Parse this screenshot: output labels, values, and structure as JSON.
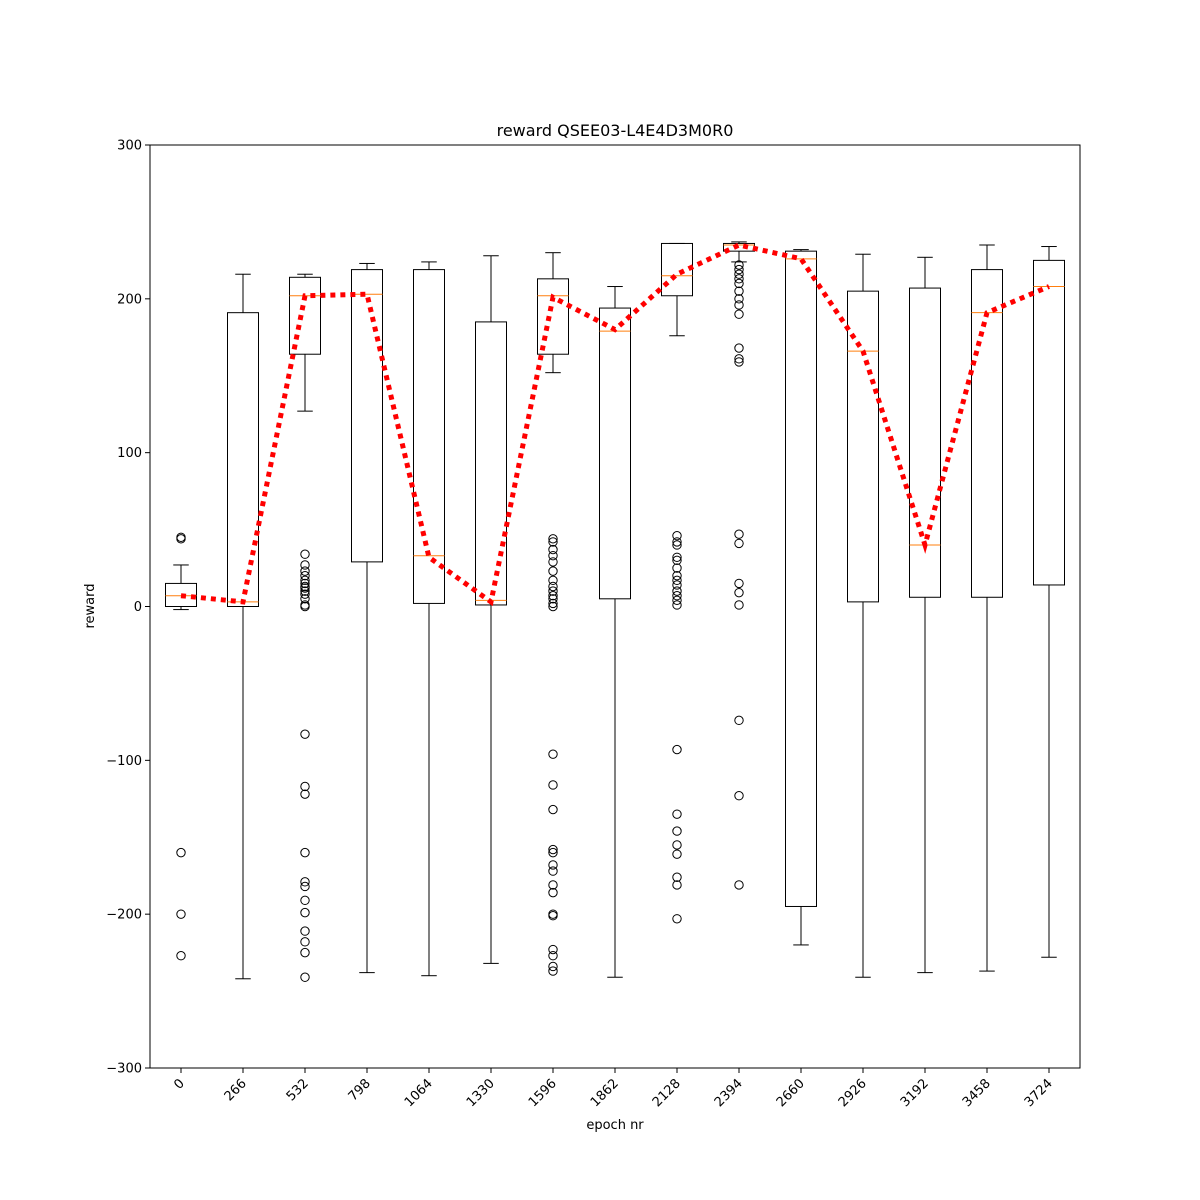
{
  "chart_data": {
    "type": "box",
    "title": "reward QSEE03-L4E4D3M0R0",
    "xlabel": "epoch nr",
    "ylabel": "reward",
    "ylim": [
      -300,
      300
    ],
    "yticks": [
      -300,
      -200,
      -100,
      0,
      100,
      200,
      300
    ],
    "ytick_labels": [
      "−300",
      "−200",
      "−100",
      "0",
      "100",
      "200",
      "300"
    ],
    "categories": [
      "0",
      "266",
      "532",
      "798",
      "1064",
      "1330",
      "1596",
      "1862",
      "2128",
      "2394",
      "2660",
      "2926",
      "3192",
      "3458",
      "3724"
    ],
    "colors": {
      "box": "#000000",
      "median": "#ff7f0e",
      "mean_line": "#ff0000"
    },
    "boxes": [
      {
        "whisker_low": -2,
        "q1": 0,
        "median": 7,
        "q3": 15,
        "whisker_high": 27,
        "outliers": [
          45,
          44,
          -160,
          -200,
          -227
        ]
      },
      {
        "whisker_low": -242,
        "q1": 0,
        "median": 3,
        "q3": 191,
        "whisker_high": 216,
        "outliers": []
      },
      {
        "whisker_low": 127,
        "q1": 164,
        "median": 202,
        "q3": 214,
        "whisker_high": 216,
        "outliers": [
          34,
          27,
          23,
          20,
          17,
          15,
          13,
          12,
          10,
          8,
          5,
          1,
          0,
          -83,
          -117,
          -122,
          -160,
          -179,
          -182,
          -191,
          -199,
          -211,
          -218,
          -225,
          -241
        ]
      },
      {
        "whisker_low": -238,
        "q1": 29,
        "median": 203,
        "q3": 219,
        "whisker_high": 223,
        "outliers": []
      },
      {
        "whisker_low": -240,
        "q1": 2,
        "median": 33,
        "q3": 219,
        "whisker_high": 224,
        "outliers": []
      },
      {
        "whisker_low": -232,
        "q1": 1,
        "median": 4,
        "q3": 185,
        "whisker_high": 228,
        "outliers": []
      },
      {
        "whisker_low": 152,
        "q1": 164,
        "median": 202,
        "q3": 213,
        "whisker_high": 230,
        "outliers": [
          44,
          42,
          37,
          33,
          29,
          23,
          17,
          13,
          10,
          7,
          5,
          2,
          0,
          -96,
          -116,
          -132,
          -158,
          -160,
          -168,
          -172,
          -181,
          -186,
          -200,
          -201,
          -223,
          -227,
          -234,
          -237
        ]
      },
      {
        "whisker_low": -241,
        "q1": 5,
        "median": 179,
        "q3": 194,
        "whisker_high": 208,
        "outliers": []
      },
      {
        "whisker_low": 176,
        "q1": 202,
        "median": 215,
        "q3": 236,
        "whisker_high": 236,
        "outliers": [
          46,
          42,
          40,
          32,
          30,
          25,
          20,
          17,
          14,
          10,
          7,
          4,
          1,
          -93,
          -135,
          -146,
          -155,
          -161,
          -176,
          -181,
          -203
        ]
      },
      {
        "whisker_low": 224,
        "q1": 231,
        "median": 235,
        "q3": 236,
        "whisker_high": 237,
        "outliers": [
          222,
          219,
          216,
          213,
          210,
          205,
          200,
          196,
          190,
          168,
          161,
          159,
          47,
          41,
          15,
          9,
          1,
          -74,
          -123,
          -181
        ]
      },
      {
        "whisker_low": -220,
        "q1": -195,
        "median": 226,
        "q3": 231,
        "whisker_high": 232,
        "outliers": []
      },
      {
        "whisker_low": -241,
        "q1": 3,
        "median": 166,
        "q3": 205,
        "whisker_high": 229,
        "outliers": []
      },
      {
        "whisker_low": -238,
        "q1": 6,
        "median": 40,
        "q3": 207,
        "whisker_high": 227,
        "outliers": []
      },
      {
        "whisker_low": -237,
        "q1": 6,
        "median": 191,
        "q3": 219,
        "whisker_high": 235,
        "outliers": []
      },
      {
        "whisker_low": -228,
        "q1": 14,
        "median": 208,
        "q3": 225,
        "whisker_high": 234,
        "outliers": []
      }
    ],
    "mean_line": [
      7,
      3,
      202,
      203,
      32,
      3,
      201,
      180,
      216,
      235,
      226,
      166,
      40,
      191,
      208
    ]
  }
}
